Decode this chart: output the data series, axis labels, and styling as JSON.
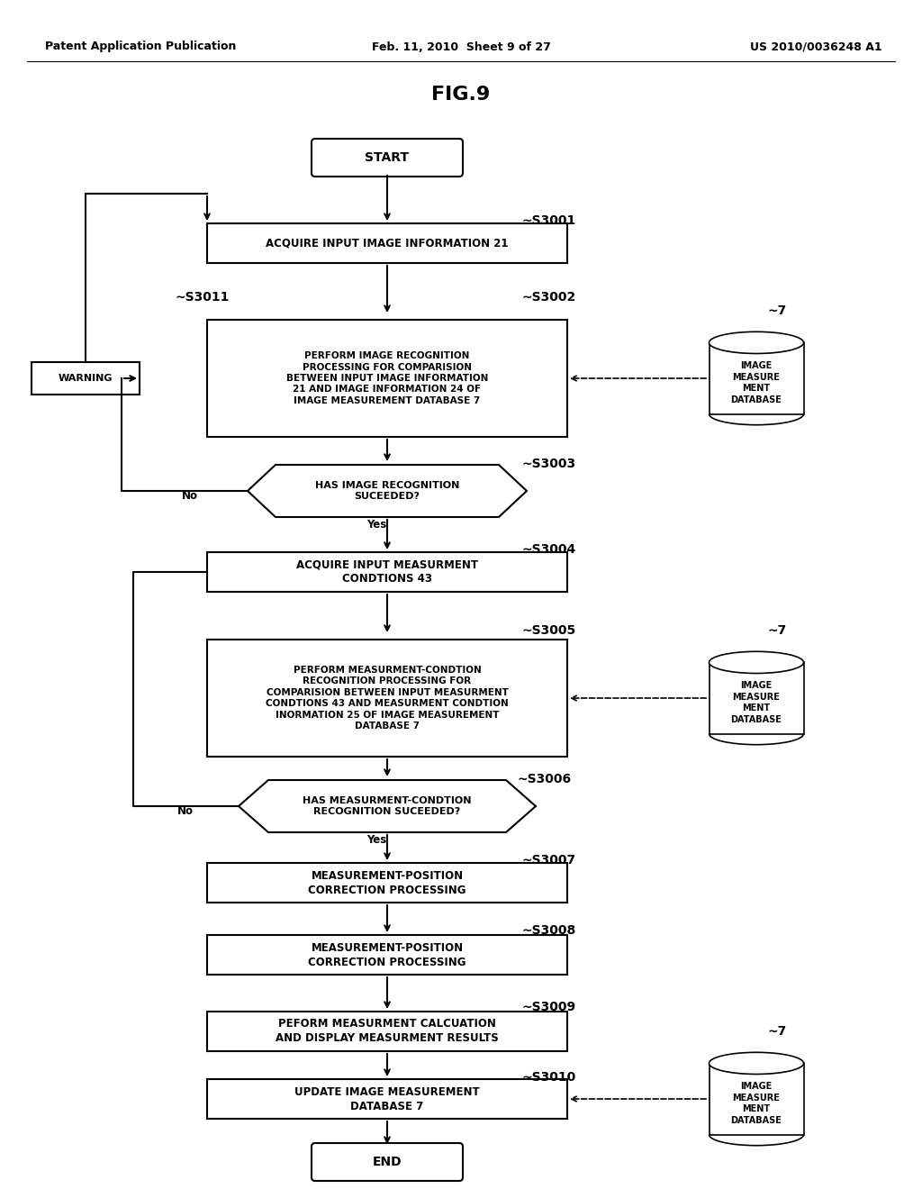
{
  "title": "FIG.9",
  "header_left": "Patent Application Publication",
  "header_mid": "Feb. 11, 2010  Sheet 9 of 27",
  "header_right": "US 2010/0036248 A1",
  "background_color": "#ffffff",
  "text_color": "#000000",
  "fig_width": 10.24,
  "fig_height": 13.2,
  "dpi": 100
}
